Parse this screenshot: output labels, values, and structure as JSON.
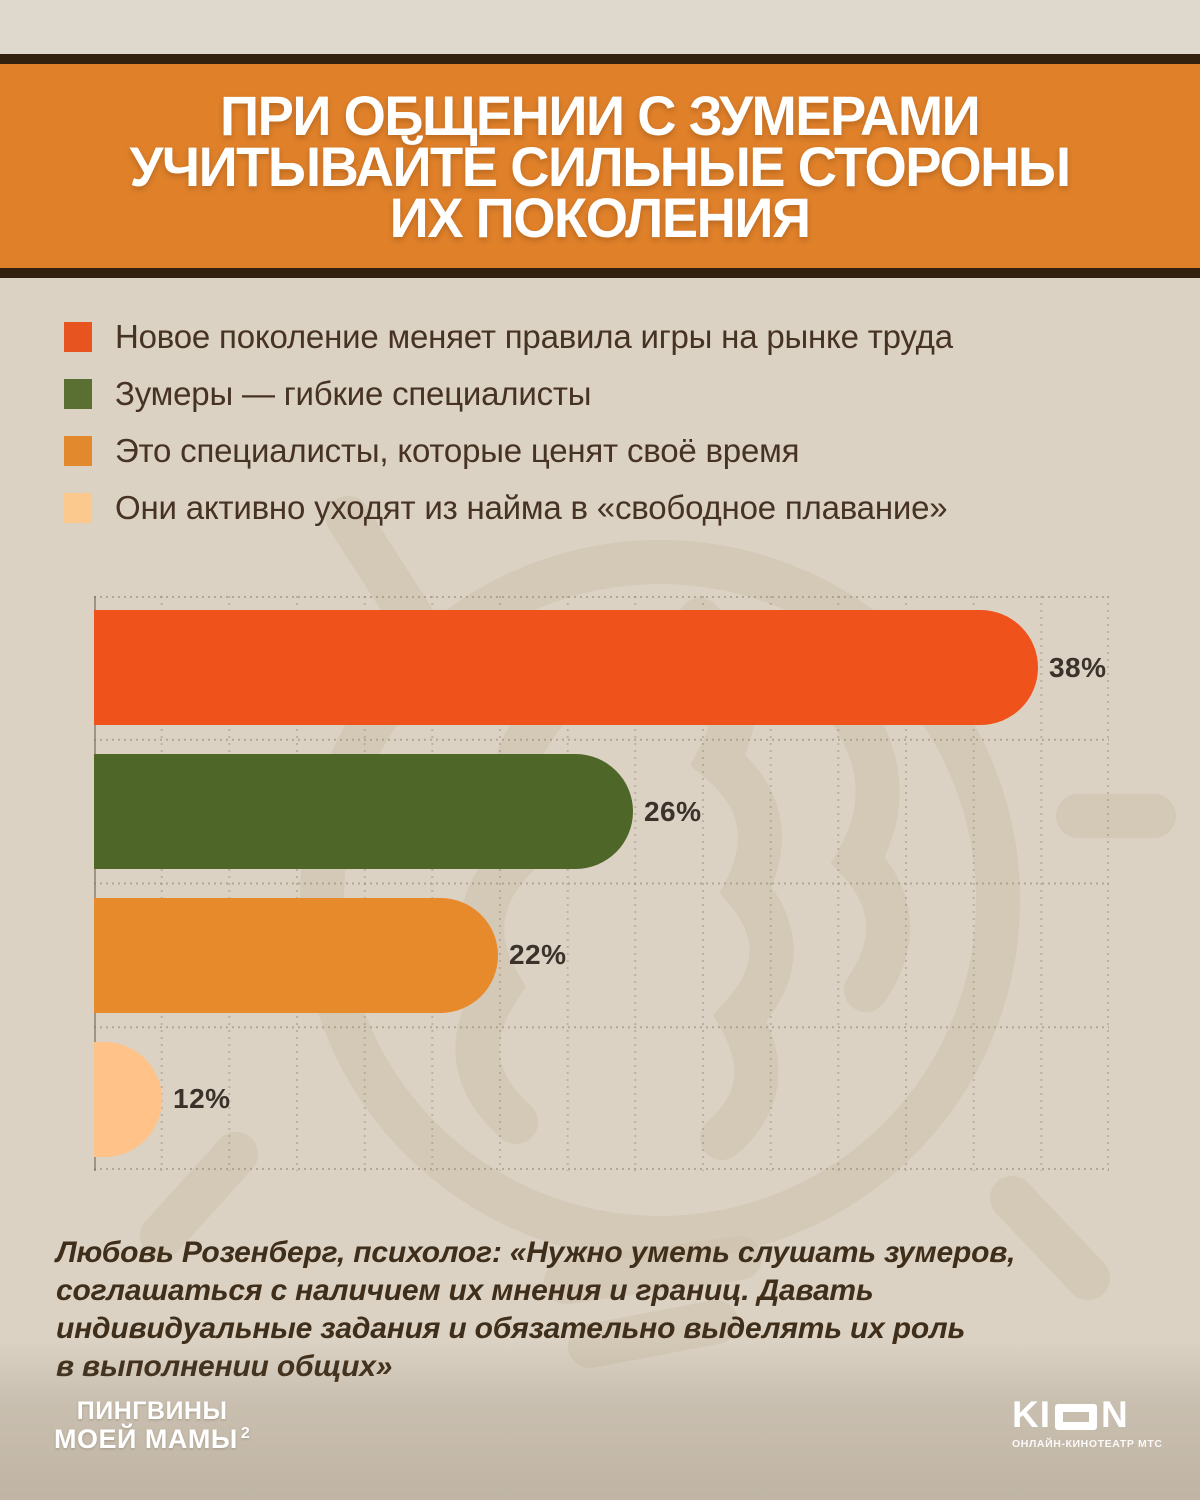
{
  "page": {
    "background_color": "#dbd2c4",
    "top_strip_color": "#ded8cd",
    "bottom_shade_color": "#c9bfb0"
  },
  "header": {
    "title": "ПРИ ОБЩЕНИИ С ЗУМЕРАМИ\nУЧИТЫВАЙТЕ СИЛЬНЫЕ СТОРОНЫ\nИХ ПОКОЛЕНИЯ",
    "background_color": "#e0812a",
    "border_color": "#32210f",
    "text_color": "#ffffff"
  },
  "legend": {
    "text_color": "#473323",
    "items": [
      {
        "label": "Новое поколение меняет правила игры на рынке труда",
        "color": "#e8541f"
      },
      {
        "label": "Зумеры — гибкие специалисты",
        "color": "#5a7033"
      },
      {
        "label": "Это специалисты, которые ценят своё время",
        "color": "#e2892e"
      },
      {
        "label": "Они активно уходят из найма в «свободное плавание»",
        "color": "#fbc98e"
      }
    ]
  },
  "chart_data": {
    "type": "bar",
    "orientation": "horizontal",
    "categories": [
      "Новое поколение меняет правила игры на рынке труда",
      "Зумеры — гибкие специалисты",
      "Это специалисты, которые ценят своё время",
      "Они активно уходят из найма в «свободное плавание»"
    ],
    "values": [
      38,
      26,
      22,
      12
    ],
    "value_labels": [
      "38%",
      "26%",
      "22%",
      "12%"
    ],
    "colors": [
      "#f0521c",
      "#4e6627",
      "#e78a2b",
      "#ffc288"
    ],
    "bar_display_width_pct": [
      93.0,
      53.1,
      39.8,
      6.7
    ],
    "value_label_color": "#3b332b",
    "value_label_position": "right-of-bar",
    "grid": "dashed-vertical-and-dotted-row-lines",
    "gridline_count_vertical": 15,
    "xlim": [
      0,
      40
    ],
    "bar_corner_style": "right-end-fully-rounded"
  },
  "quote": {
    "text": "Любовь Розенберг, психолог: «Нужно уметь слушать зумеров,\nсоглашаться с наличием их мнения и границ. Давать\nиндивидуальные задания и обязательно выделять их роль\nв выполнении общих»",
    "color": "#3f2e1a"
  },
  "footer": {
    "penguins_logo": {
      "line1": "ПИНГВИНЫ",
      "line2": "МОЕЙ МАМЫ",
      "superscript": "2"
    },
    "kion_logo": {
      "left": "KI",
      "right": "N",
      "tagline": "ОНЛАЙН-КИНОТЕАТР МТС"
    }
  }
}
